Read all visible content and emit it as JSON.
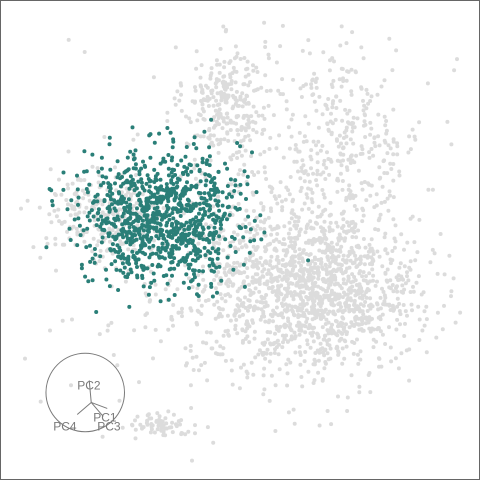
{
  "chart_data": {
    "type": "scatter",
    "title": "",
    "xlabel": "",
    "ylabel": "",
    "grid": false,
    "legend": "none",
    "colors": {
      "background_points": "#dcdcdc",
      "highlight_points": "#2a7f78",
      "frame": "#666666",
      "glyph": "#7a7a7a"
    },
    "background_clusters": [
      {
        "name": "upper-center",
        "center": [
          0.47,
          0.8
        ],
        "spread": [
          0.045,
          0.06
        ],
        "count": 260
      },
      {
        "name": "upper-right",
        "center": [
          0.72,
          0.72
        ],
        "spread": [
          0.09,
          0.11
        ],
        "count": 330
      },
      {
        "name": "lower-right-large",
        "center": [
          0.67,
          0.39
        ],
        "spread": [
          0.11,
          0.085
        ],
        "count": 1250
      },
      {
        "name": "left-arm",
        "center": [
          0.2,
          0.55
        ],
        "spread": [
          0.07,
          0.05
        ],
        "count": 230
      },
      {
        "name": "center-diffuse",
        "center": [
          0.5,
          0.45
        ],
        "spread": [
          0.12,
          0.12
        ],
        "count": 320
      },
      {
        "name": "bottom-small",
        "center": [
          0.32,
          0.1
        ],
        "spread": [
          0.035,
          0.012
        ],
        "count": 70
      },
      {
        "name": "scatter-noise",
        "center": [
          0.55,
          0.5
        ],
        "spread": [
          0.22,
          0.22
        ],
        "count": 180
      }
    ],
    "highlight_cluster": {
      "center": [
        0.33,
        0.55
      ],
      "spread": [
        0.085,
        0.07
      ],
      "count": 1000
    },
    "axes_glyph": {
      "labels": [
        "PC2",
        "PC1",
        "PC3",
        "PC4"
      ],
      "center": [
        0.165,
        0.17
      ],
      "radius": 0.085
    }
  }
}
